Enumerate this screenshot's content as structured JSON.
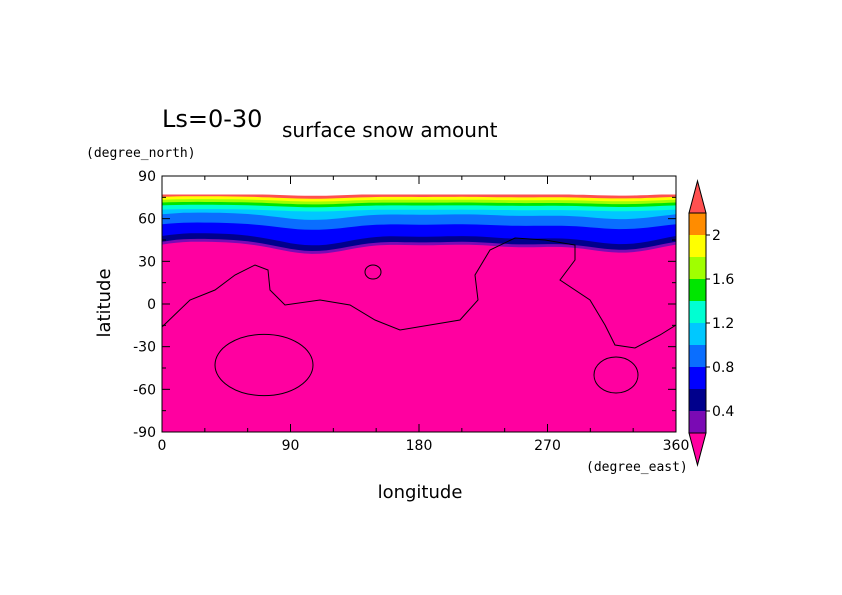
{
  "chart_data": {
    "type": "heatmap",
    "title_prefix": "Ls=0-30",
    "title": "surface snow amount",
    "xlabel": "longitude",
    "ylabel": "latitude",
    "x_unit": "(degree_east)",
    "y_unit": "(degree_north)",
    "xlim": [
      0,
      360
    ],
    "ylim": [
      -90,
      90
    ],
    "x_ticks": [
      0,
      90,
      180,
      270,
      360
    ],
    "y_ticks": [
      90,
      60,
      30,
      0,
      -30,
      -60,
      -90
    ],
    "colorbar": {
      "levels": [
        0.2,
        0.4,
        0.6,
        0.8,
        1.0,
        1.2,
        1.4,
        1.6,
        1.8,
        2.0,
        2.2
      ],
      "tick_labels": [
        "0.4",
        "0.8",
        "1.2",
        "1.6",
        "2"
      ],
      "colors": [
        "#ff00a0",
        "#7a0ab4",
        "#00008c",
        "#0000ff",
        "#0a6eff",
        "#00c8ff",
        "#00ffd2",
        "#00e600",
        "#a0ff00",
        "#ffff00",
        "#ff8c00",
        "#ff5050"
      ],
      "extend": "both"
    },
    "field": {
      "description_levels_by_latitude": [
        {
          "lat_min": -90,
          "lat_max": 40,
          "value": 0.1
        },
        {
          "lat_min": 30,
          "lat_max": 42,
          "value": 0.3
        },
        {
          "lat_min": 40,
          "lat_max": 46,
          "value": 0.5
        },
        {
          "lat_min": 46,
          "lat_max": 55,
          "value": 0.7
        },
        {
          "lat_min": 55,
          "lat_max": 62,
          "value": 0.9
        },
        {
          "lat_min": 62,
          "lat_max": 66,
          "value": 1.1
        },
        {
          "lat_min": 66,
          "lat_max": 69,
          "value": 1.3
        },
        {
          "lat_min": 69,
          "lat_max": 71,
          "value": 1.5
        },
        {
          "lat_min": 71,
          "lat_max": 73,
          "value": 1.7
        },
        {
          "lat_min": 73,
          "lat_max": 75,
          "value": 1.9
        },
        {
          "lat_min": 75,
          "lat_max": 77,
          "value": 2.3
        }
      ]
    }
  }
}
